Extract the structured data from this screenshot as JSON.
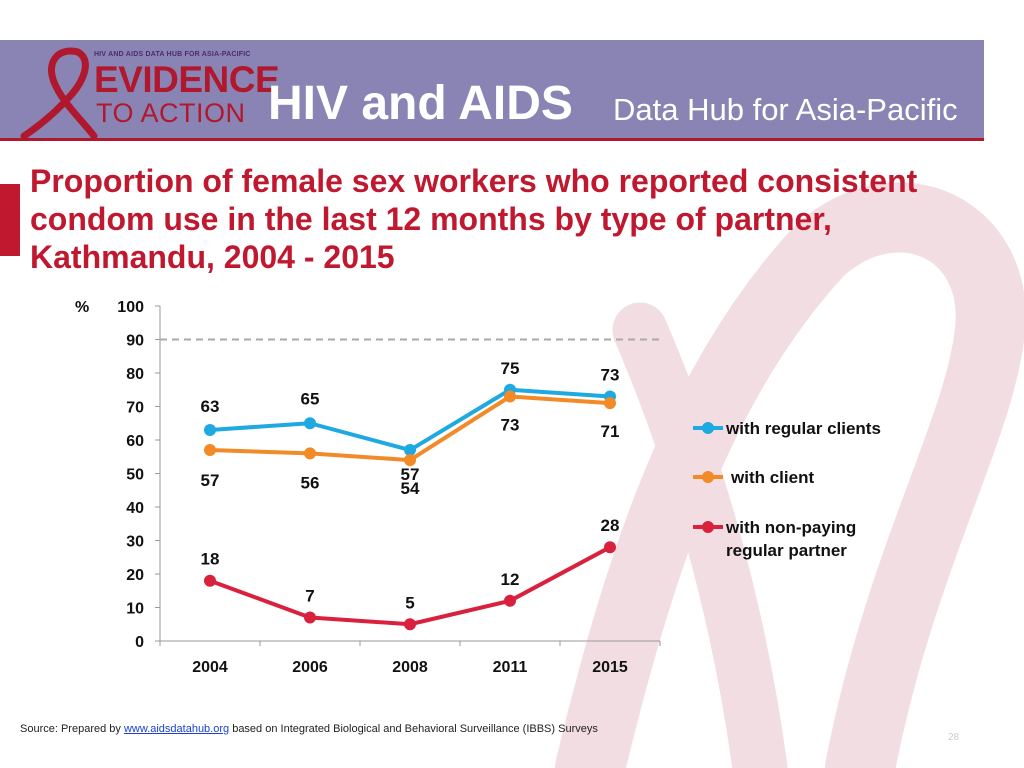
{
  "header": {
    "logo_small_text": "HIV AND AIDS DATA HUB FOR ASIA-PACIFIC",
    "logo_line1": "EVIDENCE",
    "logo_line2": "TO ACTION",
    "title": "HIV and AIDS",
    "subtitle": "Data Hub for Asia-Pacific"
  },
  "colors": {
    "header_bg": "#8a84b5",
    "accent_red": "#c0182f",
    "regular_clients": "#1fa9e1",
    "client": "#f28a27",
    "non_paying": "#d9213d"
  },
  "footer": {
    "source_prefix": "Source: Prepared by ",
    "source_link": "www.aidsdatahub.org",
    "source_suffix": " based on Integrated Biological and Behavioral Surveillance (IBBS) Surveys",
    "page_number": "28"
  },
  "chart_data": {
    "type": "line",
    "title": "Proportion of female sex workers who reported consistent condom use in the last 12 months by type of partner, Kathmandu, 2004 - 2015",
    "ylabel": "%",
    "xlabel": "",
    "ylim": [
      0,
      100
    ],
    "yticks": [
      0,
      10,
      20,
      30,
      40,
      50,
      60,
      70,
      80,
      90,
      100
    ],
    "reference_line": 90,
    "categories": [
      "2004",
      "2006",
      "2008",
      "2011",
      "2015"
    ],
    "legend_position": "right",
    "series": [
      {
        "name": "with regular clients",
        "color": "#1fa9e1",
        "values": [
          63,
          65,
          57,
          75,
          73
        ]
      },
      {
        "name": "with client",
        "color": "#f28a27",
        "values": [
          57,
          56,
          54,
          73,
          71
        ]
      },
      {
        "name": "with non-paying regular partner",
        "color": "#d9213d",
        "values": [
          18,
          7,
          5,
          12,
          28
        ]
      }
    ]
  }
}
